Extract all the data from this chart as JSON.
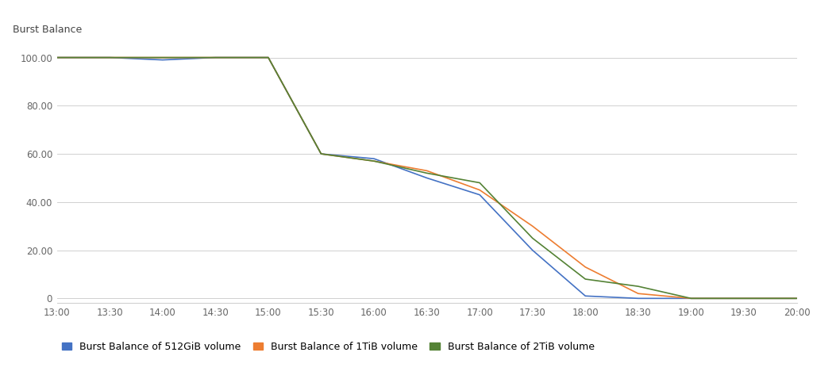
{
  "ylabel_text": "Burst Balance",
  "background_color": "#ffffff",
  "grid_color": "#d0d0d0",
  "ylim": [
    -2,
    105
  ],
  "yticks": [
    0,
    20,
    40,
    60,
    80,
    100
  ],
  "ytick_labels": [
    "0",
    "20.00",
    "40.00",
    "60.00",
    "80.00",
    "100.00"
  ],
  "xtick_labels": [
    "13:00",
    "13:30",
    "14:00",
    "14:30",
    "15:00",
    "15:30",
    "16:00",
    "16:30",
    "17:00",
    "17:30",
    "18:00",
    "18:30",
    "19:00",
    "19:30",
    "20:00"
  ],
  "series": [
    {
      "label": "Burst Balance of 512GiB volume",
      "color": "#4472c4",
      "x": [
        0,
        0.5,
        1.0,
        1.5,
        2.0,
        2.5,
        3.0,
        3.5,
        4.0,
        4.5,
        5.0,
        5.5,
        6.0,
        6.5,
        7.0
      ],
      "y": [
        100,
        100,
        99,
        100,
        100,
        60,
        58,
        50,
        43,
        20,
        1,
        0,
        0,
        0,
        0
      ]
    },
    {
      "label": "Burst Balance of 1TiB volume",
      "color": "#ed7d31",
      "x": [
        0,
        0.5,
        1.0,
        1.5,
        2.0,
        2.5,
        3.0,
        3.5,
        4.0,
        4.5,
        5.0,
        5.5,
        6.0,
        6.5,
        7.0
      ],
      "y": [
        100,
        100,
        100,
        100,
        100,
        60,
        57,
        53,
        45,
        30,
        13,
        2,
        0,
        0,
        0
      ]
    },
    {
      "label": "Burst Balance of 2TiB volume",
      "color": "#548235",
      "x": [
        0,
        0.5,
        1.0,
        1.5,
        2.0,
        2.5,
        3.0,
        3.5,
        4.0,
        4.5,
        5.0,
        5.5,
        6.0,
        6.5,
        7.0
      ],
      "y": [
        100,
        100,
        100,
        100,
        100,
        60,
        57,
        52,
        48,
        25,
        8,
        5,
        0,
        0,
        0
      ]
    }
  ],
  "legend": [
    {
      "label": "Burst Balance of 512GiB volume",
      "color": "#4472c4"
    },
    {
      "label": "Burst Balance of 1TiB volume",
      "color": "#ed7d31"
    },
    {
      "label": "Burst Balance of 2TiB volume",
      "color": "#548235"
    }
  ]
}
